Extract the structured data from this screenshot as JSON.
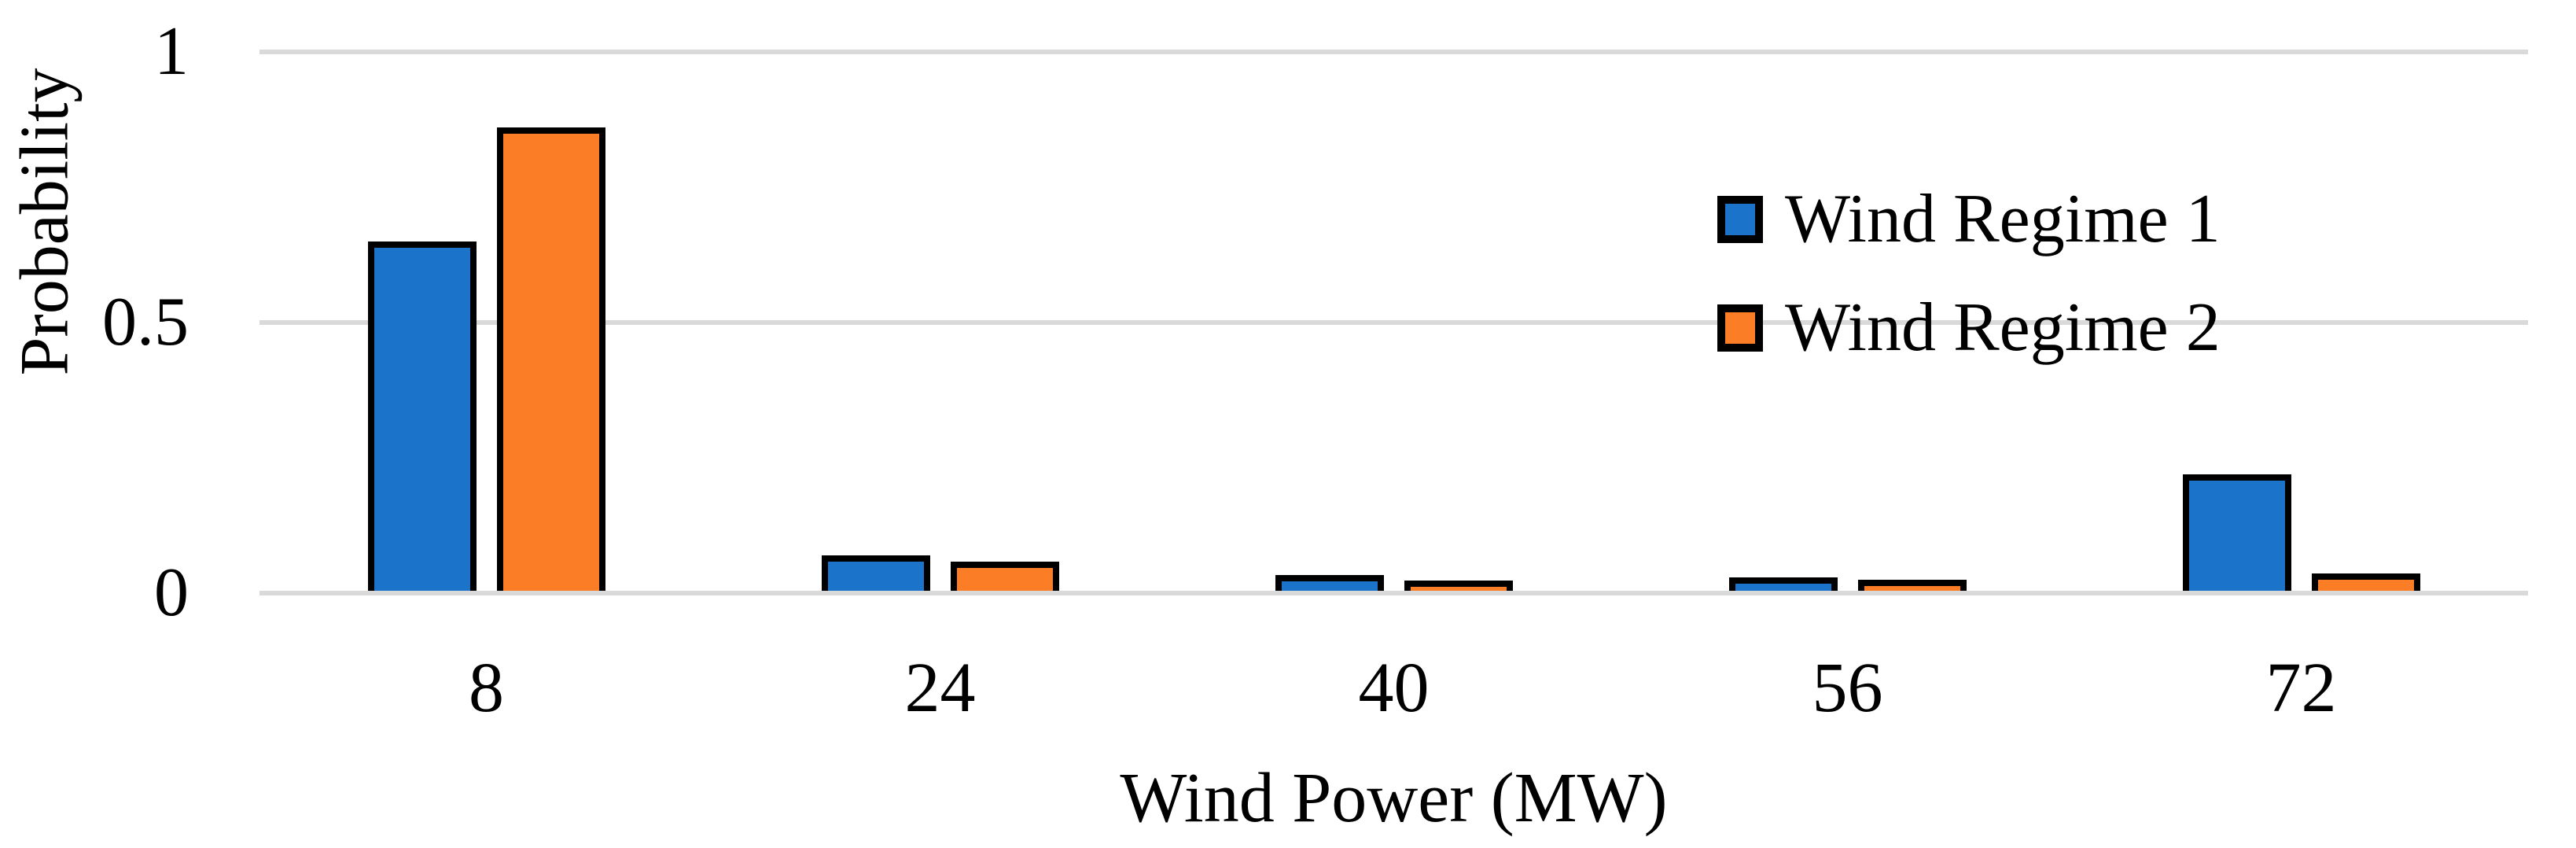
{
  "chart_data": {
    "type": "bar",
    "title": "",
    "categories": [
      "8",
      "24",
      "40",
      "56",
      "72"
    ],
    "series": [
      {
        "name": "Wind Regime 1",
        "color": "#1b74c9",
        "values": [
          0.65,
          0.07,
          0.033,
          0.029,
          0.22
        ]
      },
      {
        "name": "Wind Regime 2",
        "color": "#fb7d26",
        "values": [
          0.86,
          0.058,
          0.023,
          0.024,
          0.036
        ]
      }
    ],
    "xlabel": "Wind Power (MW)",
    "ylabel": "Probability",
    "ylim": [
      0,
      1
    ],
    "y_ticks": [
      {
        "value": 1,
        "label": "1"
      },
      {
        "value": 0.5,
        "label": "0.5"
      },
      {
        "value": 0,
        "label": "0"
      }
    ],
    "grid": "horizontal",
    "gridline_color": "#d9d9d9",
    "bar_edge_color": "#000000",
    "background": "#ffffff",
    "legend_position": "upper-right"
  }
}
